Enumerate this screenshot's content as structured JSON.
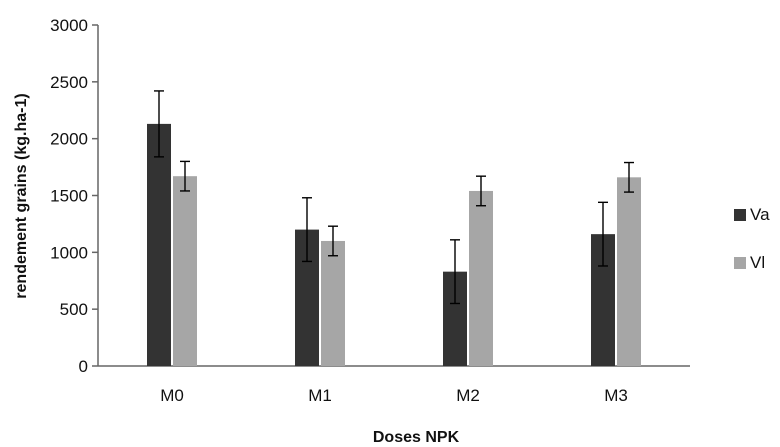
{
  "chart_data": {
    "type": "bar",
    "title": "",
    "xlabel": "Doses NPK",
    "ylabel": "rendement grains (kg.ha-1)",
    "categories": [
      "M0",
      "M1",
      "M2",
      "M3"
    ],
    "ylim": [
      0,
      3000
    ],
    "yticks": [
      0,
      500,
      1000,
      1500,
      2000,
      2500,
      3000
    ],
    "grid": false,
    "legend_position": "right",
    "series": [
      {
        "name": "Va",
        "color": "#333333",
        "values": [
          2130,
          1200,
          830,
          1160
        ],
        "errors": [
          290,
          280,
          280,
          280
        ]
      },
      {
        "name": "Vl",
        "color": "#a6a6a6",
        "values": [
          1670,
          1100,
          1540,
          1660
        ],
        "errors": [
          130,
          130,
          130,
          130
        ]
      }
    ]
  }
}
